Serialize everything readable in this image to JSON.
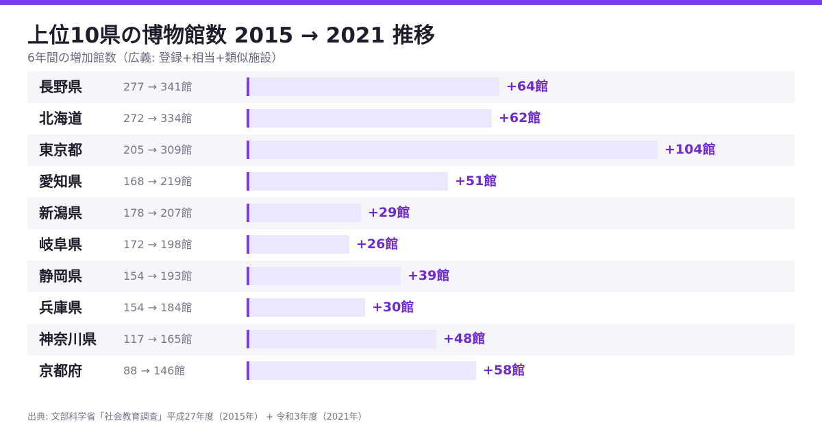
{
  "header": {
    "title": "上位10県の博物館数 2015 → 2021 推移",
    "subtitle": "6年間の増加館数（広義: 登録+相当+類似施設）"
  },
  "footer": {
    "source": "出典: 文部科学省「社会教育調査」平成27年度（2015年） + 令和3年度（2021年）"
  },
  "colors": {
    "accent": "#7c3aed",
    "bar_fill": "#ebe7fd",
    "delta_text": "#6d28d9",
    "row_alt": "#f5f5fa"
  },
  "chart_data": {
    "type": "bar",
    "orientation": "horizontal",
    "title": "上位10県の博物館数 2015 → 2021 推移",
    "subtitle": "6年間の増加館数（広義: 登録+相当+類似施設）",
    "unit": "館",
    "xlim": [
      0,
      104
    ],
    "categories": [
      "長野県",
      "北海道",
      "東京都",
      "愛知県",
      "新潟県",
      "岐阜県",
      "静岡県",
      "兵庫県",
      "神奈川県",
      "京都府"
    ],
    "series": [
      {
        "name": "2015",
        "values": [
          277,
          272,
          205,
          168,
          178,
          172,
          154,
          154,
          117,
          88
        ]
      },
      {
        "name": "2021",
        "values": [
          341,
          334,
          309,
          219,
          207,
          198,
          193,
          184,
          165,
          146
        ]
      }
    ],
    "values": [
      64,
      62,
      104,
      51,
      29,
      26,
      39,
      30,
      48,
      58
    ],
    "range_labels": [
      "277 → 341館",
      "272 → 334館",
      "205 → 309館",
      "168 → 219館",
      "178 → 207館",
      "172 → 198館",
      "154 → 193館",
      "154 → 184館",
      "117 → 165館",
      "88 → 146館"
    ],
    "delta_labels": [
      "+64館",
      "+62館",
      "+104館",
      "+51館",
      "+29館",
      "+26館",
      "+39館",
      "+30館",
      "+48館",
      "+58館"
    ]
  }
}
